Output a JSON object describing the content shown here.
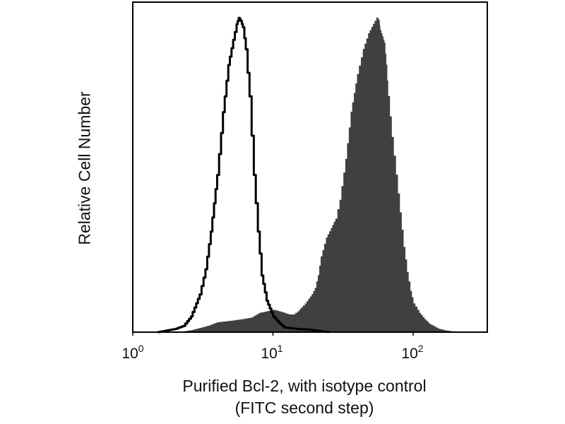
{
  "chart_data": {
    "type": "area",
    "title": "",
    "xlabel_line1": "Purified Bcl-2, with isotype control",
    "xlabel_line2": "(FITC second step)",
    "ylabel": "Relative Cell Number",
    "x_scale": "log",
    "xlim": [
      1,
      350
    ],
    "ylim": [
      0,
      1.05
    ],
    "x_ticks": [
      {
        "base": "10",
        "exp": "0",
        "value": 1
      },
      {
        "base": "10",
        "exp": "1",
        "value": 10
      },
      {
        "base": "10",
        "exp": "2",
        "value": 100
      }
    ],
    "grid": false,
    "legend": "none",
    "series": [
      {
        "style": "filled",
        "color": "#404040",
        "x": [
          2.2,
          2.6,
          3,
          3.5,
          4,
          5,
          6,
          7,
          8,
          9,
          10,
          11,
          12,
          13,
          14,
          15,
          17,
          19,
          20,
          21,
          22,
          24,
          26,
          28,
          30,
          33,
          36,
          40,
          44,
          48,
          52,
          55,
          57,
          58,
          60,
          62,
          64,
          66,
          70,
          75,
          80,
          85,
          90,
          95,
          100,
          110,
          120,
          130,
          150,
          170,
          200
        ],
        "y": [
          0,
          0.005,
          0.012,
          0.02,
          0.03,
          0.035,
          0.04,
          0.045,
          0.06,
          0.065,
          0.07,
          0.065,
          0.06,
          0.055,
          0.055,
          0.065,
          0.09,
          0.12,
          0.14,
          0.18,
          0.24,
          0.3,
          0.33,
          0.36,
          0.42,
          0.55,
          0.7,
          0.82,
          0.9,
          0.95,
          0.98,
          1.0,
          0.99,
          0.96,
          0.94,
          0.92,
          0.85,
          0.75,
          0.62,
          0.5,
          0.38,
          0.27,
          0.19,
          0.13,
          0.09,
          0.06,
          0.04,
          0.025,
          0.01,
          0.004,
          0
        ]
      },
      {
        "style": "outline",
        "color": "#000000",
        "x": [
          1.5,
          2,
          2.3,
          2.6,
          3,
          3.3,
          3.6,
          4,
          4.4,
          4.8,
          5.2,
          5.5,
          5.7,
          5.9,
          6.1,
          6.4,
          6.8,
          7.3,
          7.8,
          8.3,
          9,
          10,
          11,
          12,
          15,
          18,
          20,
          25
        ],
        "y": [
          0,
          0.01,
          0.02,
          0.05,
          0.12,
          0.2,
          0.32,
          0.5,
          0.7,
          0.85,
          0.93,
          0.98,
          1.0,
          0.99,
          0.97,
          0.9,
          0.75,
          0.5,
          0.32,
          0.18,
          0.1,
          0.05,
          0.03,
          0.015,
          0.01,
          0.008,
          0.005,
          0
        ]
      }
    ]
  }
}
